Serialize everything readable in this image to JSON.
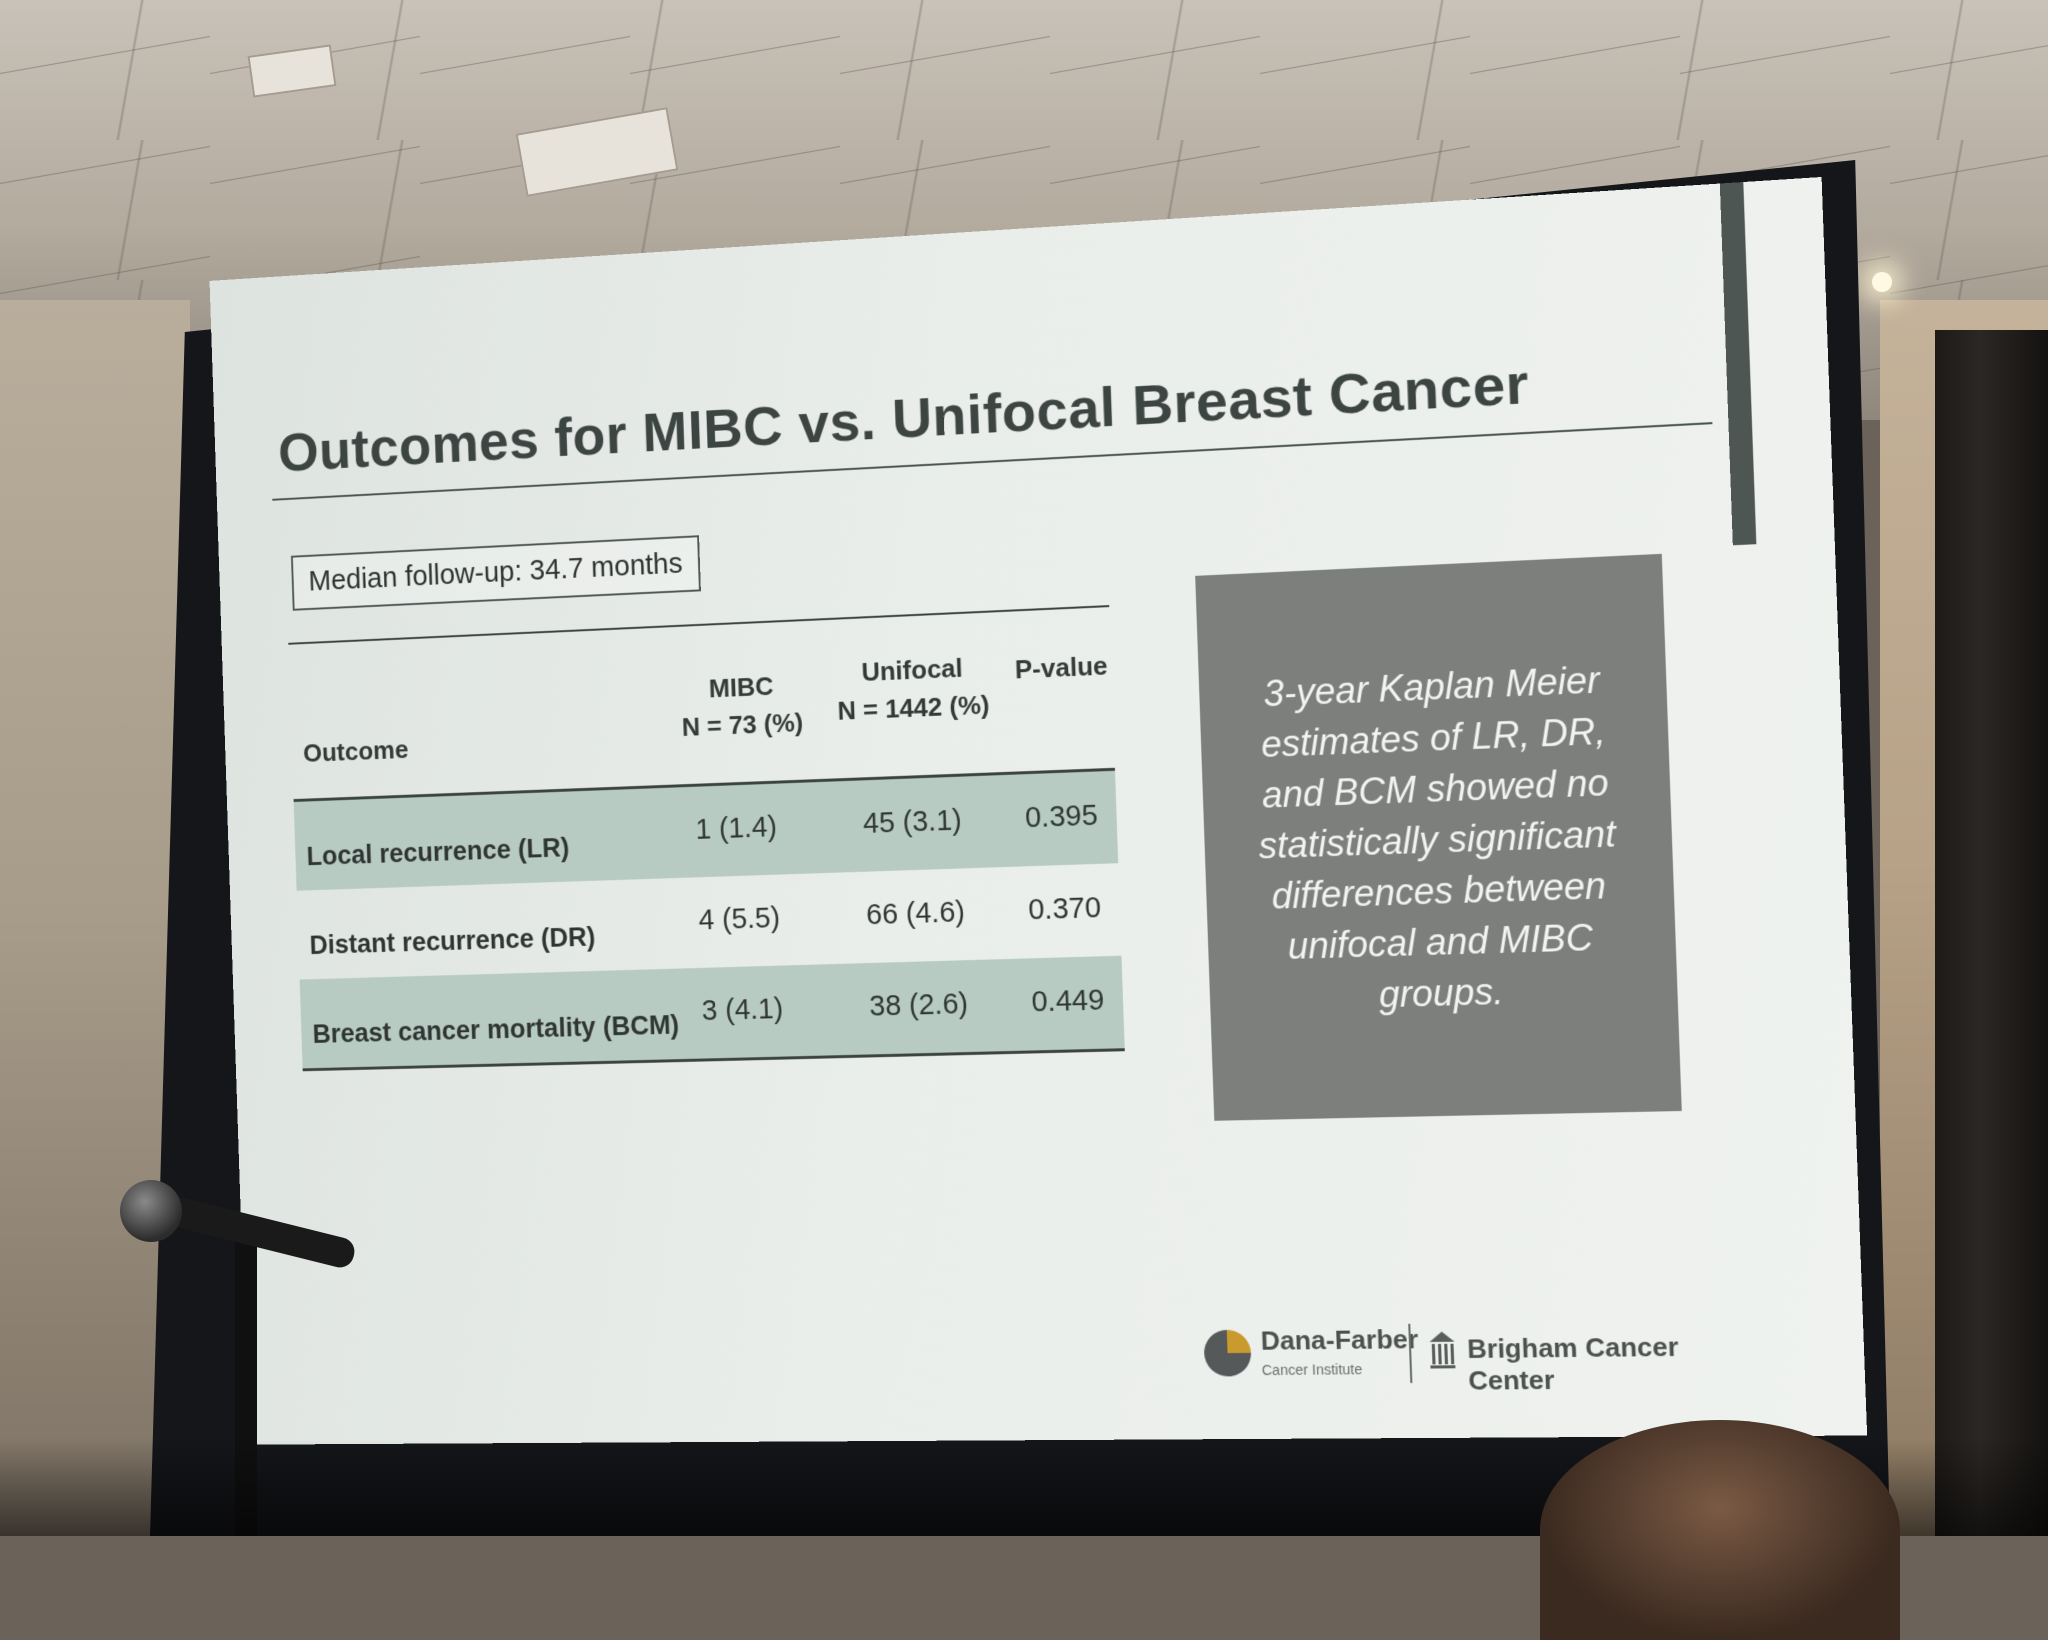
{
  "slide": {
    "title": "Outcomes for MIBC vs. Unifocal Breast Cancer",
    "followup": "Median follow-up: 34.7 months",
    "table": {
      "headers": {
        "outcome": "Outcome",
        "mibc_line1": "MIBC",
        "mibc_line2": "N = 73 (%)",
        "unifocal_line1": "Unifocal",
        "unifocal_line2": "N = 1442 (%)",
        "pvalue": "P-value"
      },
      "rows": [
        {
          "outcome": "Local recurrence (LR)",
          "mibc": "1 (1.4)",
          "unifocal": "45 (3.1)",
          "p": "0.395"
        },
        {
          "outcome": "Distant recurrence (DR)",
          "mibc": "4 (5.5)",
          "unifocal": "66 (4.6)",
          "p": "0.370"
        },
        {
          "outcome": "Breast cancer mortality (BCM)",
          "mibc": "3 (4.1)",
          "unifocal": "38 (2.6)",
          "p": "0.449"
        }
      ]
    },
    "callout": "3-year Kaplan Meier estimates of LR, DR, and BCM showed no statistically significant differences between unifocal and MIBC groups.",
    "logos": {
      "dana_farber": "Dana-Farber",
      "dana_farber_sub": "Cancer Institute",
      "brigham": "Brigham Cancer Center"
    }
  },
  "colors": {
    "row_shade": "#b8cbc3",
    "callout_bg": "#7d7f7c",
    "title_text": "#3d4543"
  }
}
